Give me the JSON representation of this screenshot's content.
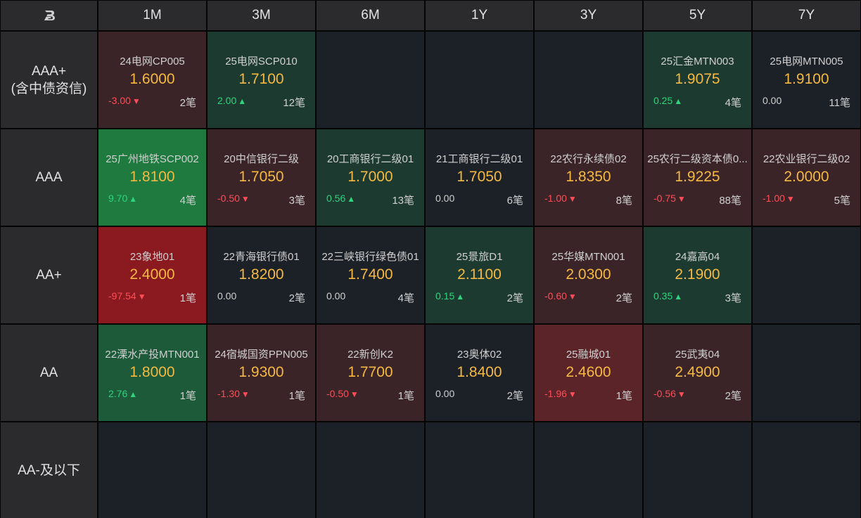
{
  "header": {
    "logo_icon": "logo-b-icon",
    "columns": [
      "1M",
      "3M",
      "6M",
      "1Y",
      "3Y",
      "5Y",
      "7Y"
    ]
  },
  "rows": [
    {
      "label_line1": "AAA+",
      "label_line2": "(含中债资信)",
      "cells": [
        {
          "name": "24电网CP005",
          "price": "1.6000",
          "change": "-3.00",
          "dir": "down",
          "count": "2笔",
          "tone": "red1"
        },
        {
          "name": "25电网SCP010",
          "price": "1.7100",
          "change": "2.00",
          "dir": "up",
          "count": "12笔",
          "tone": "green1"
        },
        null,
        null,
        null,
        {
          "name": "25汇金MTN003",
          "price": "1.9075",
          "change": "0.25",
          "dir": "up",
          "count": "4笔",
          "tone": "green1"
        },
        {
          "name": "25电网MTN005",
          "price": "1.9100",
          "change": "0.00",
          "dir": "flat",
          "count": "11笔",
          "tone": "neutral"
        }
      ]
    },
    {
      "label_line1": "AAA",
      "label_line2": "",
      "cells": [
        {
          "name": "25广州地铁SCP002",
          "price": "1.8100",
          "change": "9.70",
          "dir": "up",
          "count": "4笔",
          "tone": "green3"
        },
        {
          "name": "20中信银行二级",
          "price": "1.7050",
          "change": "-0.50",
          "dir": "down",
          "count": "3笔",
          "tone": "red1"
        },
        {
          "name": "20工商银行二级01",
          "price": "1.7000",
          "change": "0.56",
          "dir": "up",
          "count": "13笔",
          "tone": "green1"
        },
        {
          "name": "21工商银行二级01",
          "price": "1.7050",
          "change": "0.00",
          "dir": "flat",
          "count": "6笔",
          "tone": "neutral"
        },
        {
          "name": "22农行永续债02",
          "price": "1.8350",
          "change": "-1.00",
          "dir": "down",
          "count": "8笔",
          "tone": "red1"
        },
        {
          "name": "25农行二级资本债0...",
          "price": "1.9225",
          "change": "-0.75",
          "dir": "down",
          "count": "88笔",
          "tone": "red1"
        },
        {
          "name": "22农业银行二级02",
          "price": "2.0000",
          "change": "-1.00",
          "dir": "down",
          "count": "5笔",
          "tone": "red1"
        }
      ]
    },
    {
      "label_line1": "AA+",
      "label_line2": "",
      "cells": [
        {
          "name": "23象地01",
          "price": "2.4000",
          "change": "-97.54",
          "dir": "down",
          "count": "1笔",
          "tone": "red3"
        },
        {
          "name": "22青海银行债01",
          "price": "1.8200",
          "change": "0.00",
          "dir": "flat",
          "count": "2笔",
          "tone": "neutral"
        },
        {
          "name": "22三峡银行绿色债01",
          "price": "1.7400",
          "change": "0.00",
          "dir": "flat",
          "count": "4笔",
          "tone": "neutral"
        },
        {
          "name": "25景旅D1",
          "price": "2.1100",
          "change": "0.15",
          "dir": "up",
          "count": "2笔",
          "tone": "green1"
        },
        {
          "name": "25华媒MTN001",
          "price": "2.0300",
          "change": "-0.60",
          "dir": "down",
          "count": "2笔",
          "tone": "red1"
        },
        {
          "name": "24嘉高04",
          "price": "2.1900",
          "change": "0.35",
          "dir": "up",
          "count": "3笔",
          "tone": "green1"
        },
        null
      ]
    },
    {
      "label_line1": "AA",
      "label_line2": "",
      "cells": [
        {
          "name": "22溧水产投MTN001",
          "price": "1.8000",
          "change": "2.76",
          "dir": "up",
          "count": "1笔",
          "tone": "green2"
        },
        {
          "name": "24宿城国资PPN005",
          "price": "1.9300",
          "change": "-1.30",
          "dir": "down",
          "count": "1笔",
          "tone": "red1"
        },
        {
          "name": "22新创K2",
          "price": "1.7700",
          "change": "-0.50",
          "dir": "down",
          "count": "1笔",
          "tone": "red1"
        },
        {
          "name": "23奥体02",
          "price": "1.8400",
          "change": "0.00",
          "dir": "flat",
          "count": "2笔",
          "tone": "neutral"
        },
        {
          "name": "25融城01",
          "price": "2.4600",
          "change": "-1.96",
          "dir": "down",
          "count": "1笔",
          "tone": "red2"
        },
        {
          "name": "25武夷04",
          "price": "2.4900",
          "change": "-0.56",
          "dir": "down",
          "count": "2笔",
          "tone": "red1"
        },
        null
      ]
    },
    {
      "label_line1": "AA-及以下",
      "label_line2": "",
      "cells": [
        null,
        null,
        null,
        null,
        null,
        null,
        null
      ]
    }
  ],
  "colors": {
    "price": "#f5b942",
    "up": "#2fd47c",
    "down": "#ff4d57",
    "header_bg": "#2b2b2d",
    "empty_bg": "#1c2128"
  },
  "symbols": {
    "up_arrow": "▲",
    "down_arrow": "▼"
  }
}
